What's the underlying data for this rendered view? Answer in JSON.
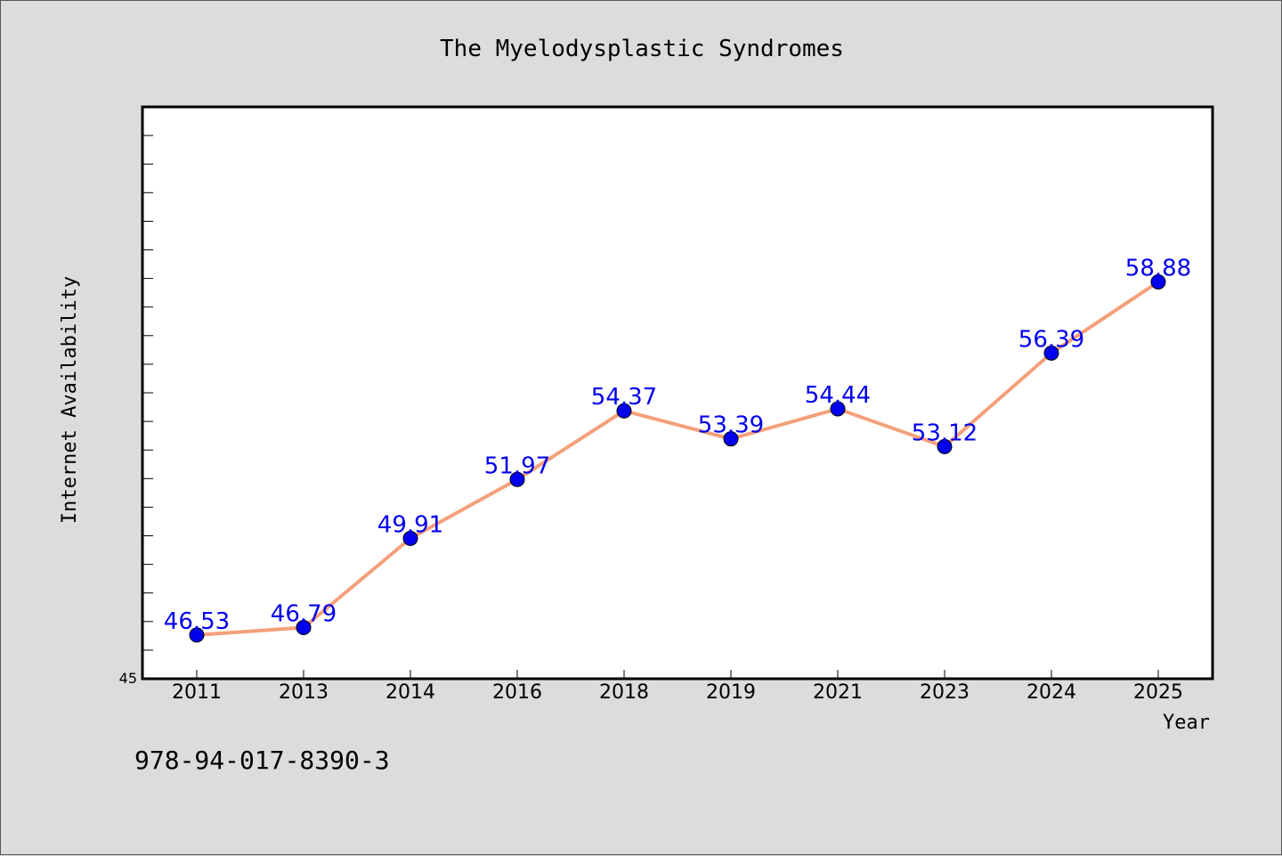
{
  "chart_data": {
    "type": "line",
    "title": "The Myelodysplastic Syndromes",
    "xlabel": "Year",
    "ylabel": "Internet Availability",
    "categories": [
      "2011",
      "2013",
      "2014",
      "2016",
      "2018",
      "2019",
      "2021",
      "2023",
      "2024",
      "2025"
    ],
    "series": [
      {
        "values": [
          46.53,
          46.79,
          49.91,
          51.97,
          54.37,
          53.39,
          54.44,
          53.12,
          56.39,
          58.88
        ]
      }
    ],
    "data_labels": [
      "46.53",
      "46.79",
      "49.91",
      "51.97",
      "54.37",
      "53.39",
      "54.44",
      "53.12",
      "56.39",
      "58.88"
    ],
    "ylim": [
      45,
      65
    ],
    "yticks_labeled": [
      "45"
    ],
    "grid": false,
    "line_color": "#f4a07a",
    "marker_color": "#0000ee",
    "label_color": "#0000ee"
  },
  "footer": {
    "isbn": "978-94-017-8390-3"
  }
}
